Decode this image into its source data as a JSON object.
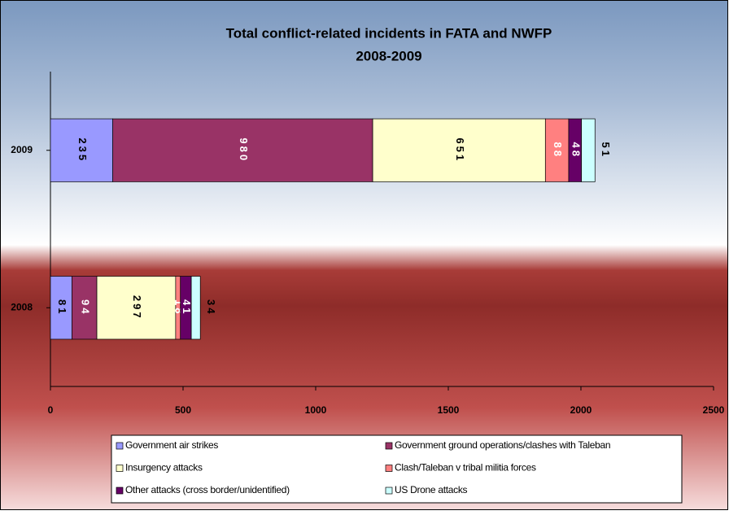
{
  "chart_data": {
    "type": "stacked-bar-horizontal",
    "title": "Total conflict-related incidents in FATA and NWFP",
    "subtitle": "2008-2009",
    "categories": [
      "2008",
      "2009"
    ],
    "series": [
      {
        "name": "Government air strikes",
        "color": "#9999ff",
        "label_color": "#000000",
        "values": [
          81,
          235
        ]
      },
      {
        "name": "Government ground operations/clashes with Taleban",
        "color": "#993366",
        "label_color": "#ffffff",
        "values": [
          94,
          980
        ]
      },
      {
        "name": "Insurgency attacks",
        "color": "#ffffcc",
        "label_color": "#000000",
        "values": [
          297,
          651
        ]
      },
      {
        "name": "Clash/Taleban v tribal militia forces",
        "color": "#ff8080",
        "label_color": "#ffffff",
        "values": [
          18,
          88
        ]
      },
      {
        "name": "Other attacks (cross border/unidentified)",
        "color": "#660066",
        "label_color": "#ffffff",
        "values": [
          41,
          48
        ]
      },
      {
        "name": "US Drone attacks",
        "color": "#ccffff",
        "label_color": "#000000",
        "values": [
          34,
          51
        ]
      }
    ],
    "xlim": [
      0,
      2500
    ],
    "xticks": [
      0,
      500,
      1000,
      1500,
      2000,
      2500
    ],
    "legend": "bottom"
  }
}
